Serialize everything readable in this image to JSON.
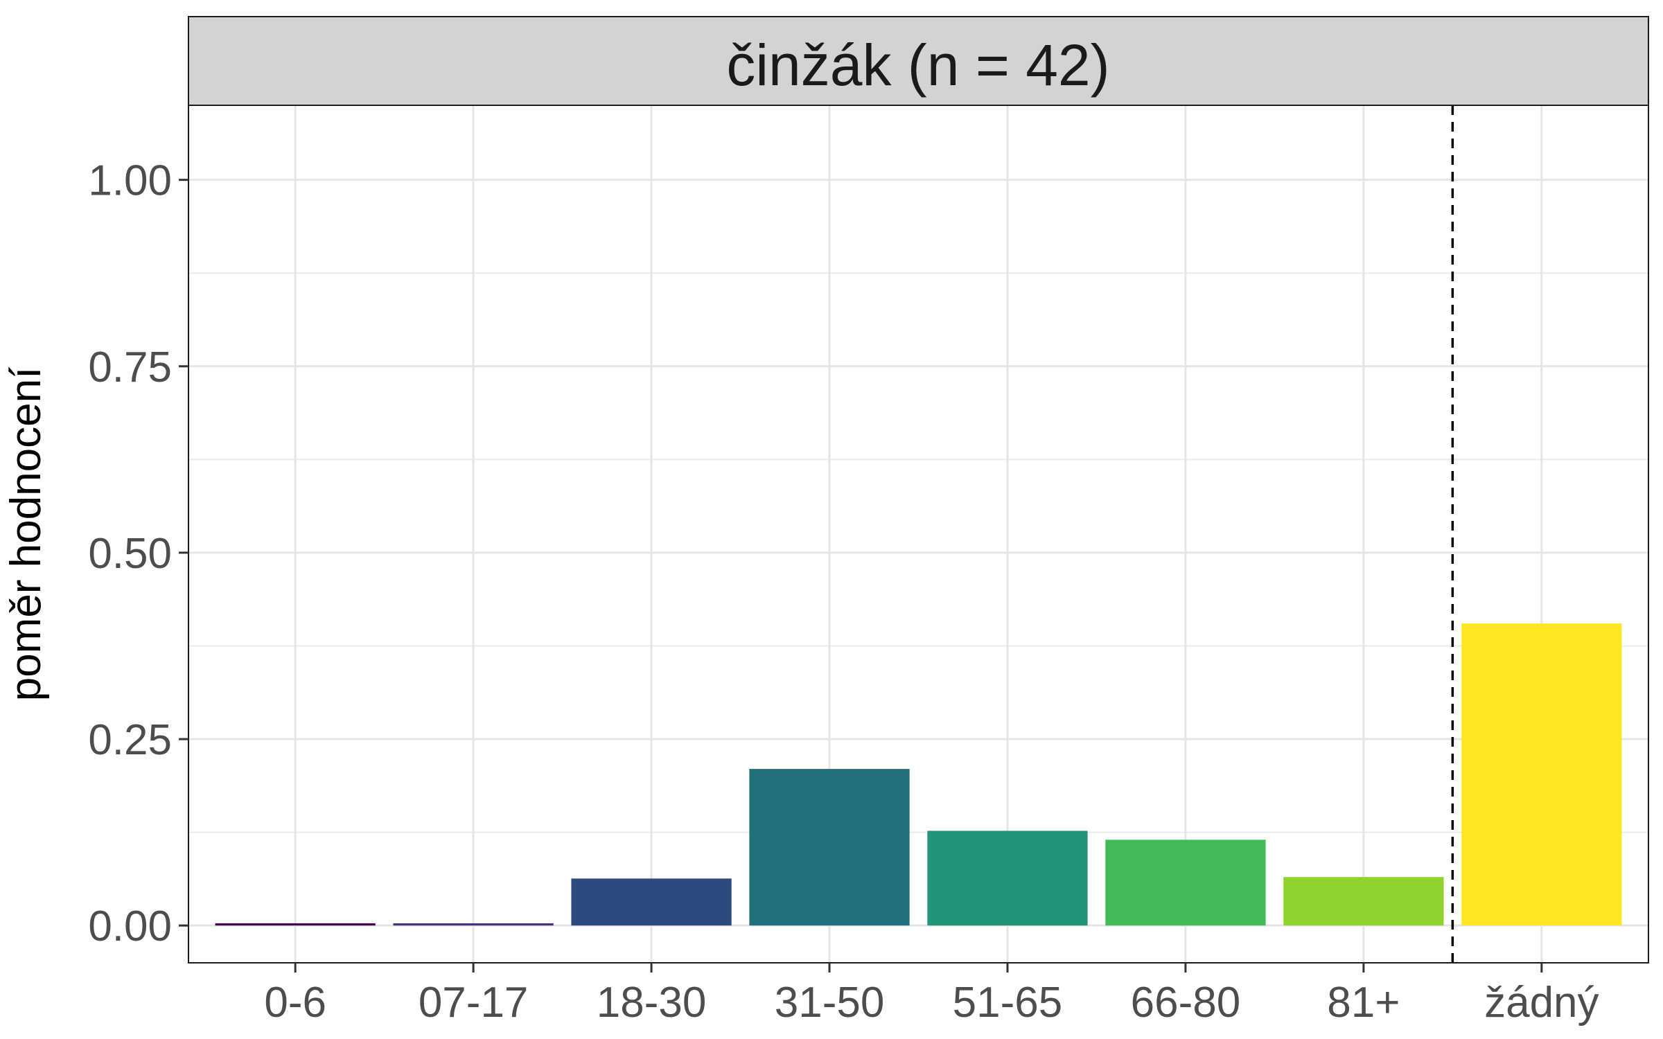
{
  "chart_data": {
    "type": "bar",
    "title": "činžák (n = 42)",
    "xlabel": "",
    "ylabel": "poměr hodnocení",
    "categories": [
      "0-6",
      "07-17",
      "18-30",
      "31-50",
      "51-65",
      "66-80",
      "81+",
      "žádný"
    ],
    "values": [
      0.003,
      0.003,
      0.063,
      0.21,
      0.127,
      0.115,
      0.065,
      0.405
    ],
    "colors": [
      "#440154",
      "#46327e",
      "#2c4a7d",
      "#21707c",
      "#21947a",
      "#43b95a",
      "#8fd42e",
      "#fde725"
    ],
    "ylim": [
      -0.05,
      1.1
    ],
    "yticks": [
      0.0,
      0.25,
      0.5,
      0.75,
      1.0
    ],
    "ytick_labels": [
      "0.00",
      "0.25",
      "0.50",
      "0.75",
      "1.00"
    ],
    "grid": true,
    "legend": "none",
    "reference_line": {
      "between_categories": [
        "81+",
        "žádný"
      ],
      "style": "dashed",
      "color": "#000000"
    },
    "facet_strip_color": "#d3d3d3"
  }
}
